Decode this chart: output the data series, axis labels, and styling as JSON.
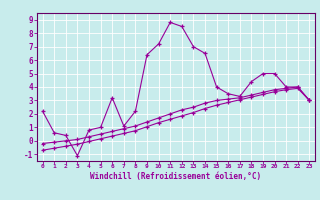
{
  "bg_color": "#c8ecec",
  "border_color": "#660066",
  "line_color": "#990099",
  "grid_color": "#aadddd",
  "xlim": [
    -0.5,
    23.5
  ],
  "ylim": [
    -1.5,
    9.5
  ],
  "yticks": [
    -1,
    0,
    1,
    2,
    3,
    4,
    5,
    6,
    7,
    8,
    9
  ],
  "xticks": [
    0,
    1,
    2,
    3,
    4,
    5,
    6,
    7,
    8,
    9,
    10,
    11,
    12,
    13,
    14,
    15,
    16,
    17,
    18,
    19,
    20,
    21,
    22,
    23
  ],
  "xlabel": "Windchill (Refroidissement éolien,°C)",
  "line1_x": [
    0,
    1,
    2,
    3,
    4,
    5,
    6,
    7,
    8,
    9,
    10,
    11,
    12,
    13,
    14,
    15,
    16,
    17,
    18,
    19,
    20,
    21,
    22,
    23
  ],
  "line1_y": [
    2.2,
    0.6,
    0.4,
    -1.1,
    0.8,
    1.0,
    3.2,
    1.1,
    2.2,
    6.4,
    7.2,
    8.8,
    8.5,
    7.0,
    6.5,
    4.0,
    3.5,
    3.3,
    4.4,
    5.0,
    5.0,
    4.0,
    4.0,
    3.0
  ],
  "line2_x": [
    0,
    1,
    2,
    3,
    4,
    5,
    6,
    7,
    8,
    9,
    10,
    11,
    12,
    13,
    14,
    15,
    16,
    17,
    18,
    19,
    20,
    21,
    22,
    23
  ],
  "line2_y": [
    -0.2,
    -0.1,
    0.0,
    0.1,
    0.3,
    0.5,
    0.7,
    0.9,
    1.1,
    1.4,
    1.7,
    2.0,
    2.3,
    2.5,
    2.8,
    3.0,
    3.1,
    3.2,
    3.4,
    3.6,
    3.8,
    3.9,
    4.0,
    3.0
  ],
  "line3_x": [
    0,
    1,
    2,
    3,
    4,
    5,
    6,
    7,
    8,
    9,
    10,
    11,
    12,
    13,
    14,
    15,
    16,
    17,
    18,
    19,
    20,
    21,
    22,
    23
  ],
  "line3_y": [
    -0.7,
    -0.55,
    -0.4,
    -0.25,
    -0.05,
    0.15,
    0.35,
    0.55,
    0.75,
    1.05,
    1.35,
    1.6,
    1.85,
    2.1,
    2.4,
    2.65,
    2.85,
    3.05,
    3.25,
    3.45,
    3.65,
    3.8,
    3.9,
    3.0
  ]
}
